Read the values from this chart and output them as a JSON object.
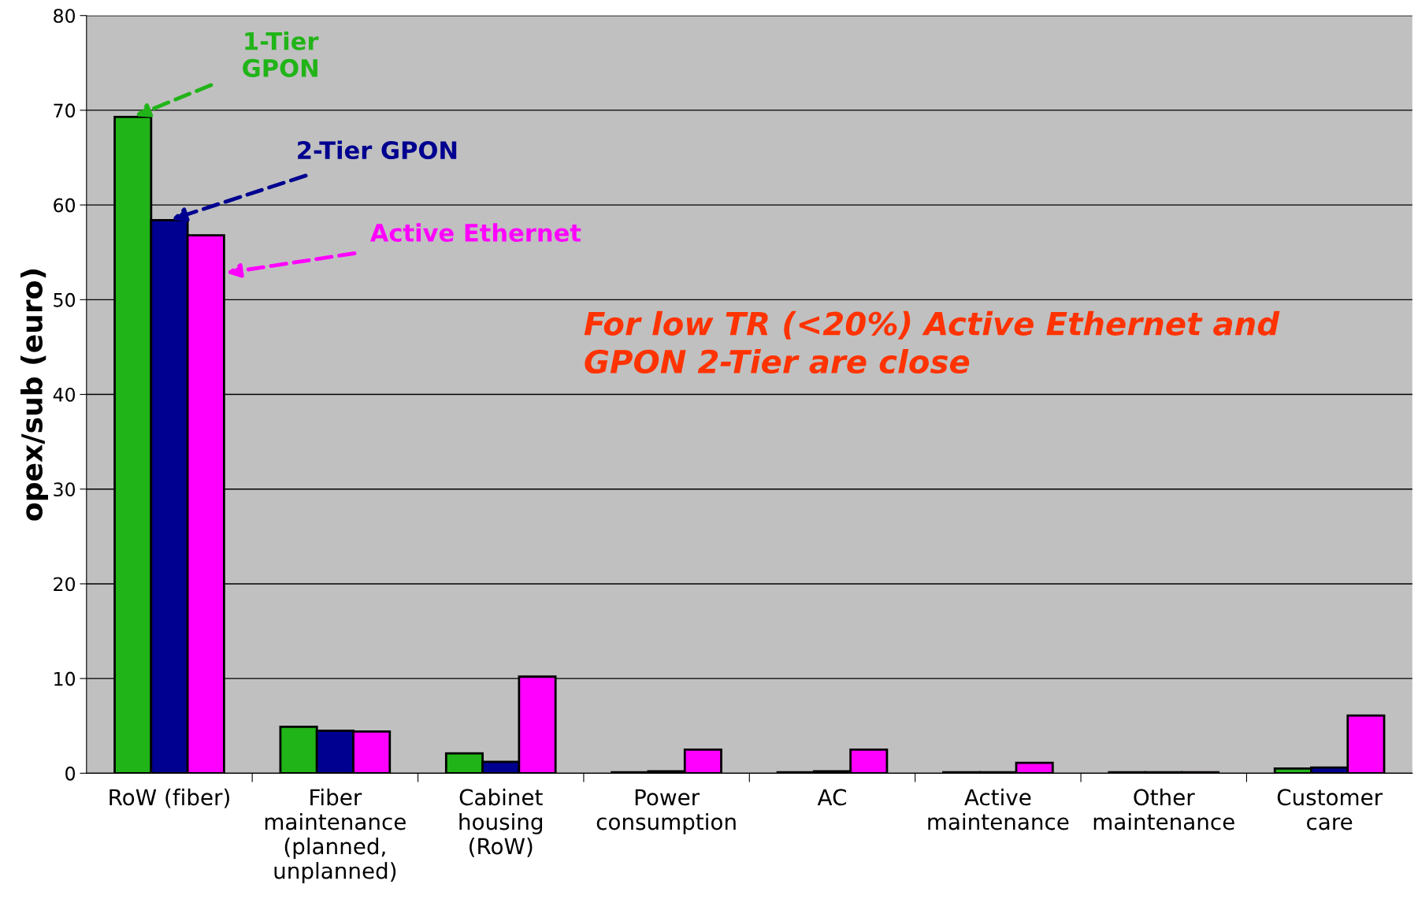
{
  "chart_data": {
    "type": "bar",
    "ylabel": "opex/sub (euro)",
    "categories": [
      "RoW (fiber)",
      "Fiber\nmaintenance\n(planned,\nunplanned)",
      "Cabinet\nhousing\n(RoW)",
      "Power\nconsumption",
      "AC",
      "Active\nmaintenance",
      "Other\nmaintenance",
      "Customer\ncare"
    ],
    "series": [
      {
        "name": "1-Tier\nGPON",
        "color": "#21b418",
        "values": [
          69.3,
          4.9,
          2.1,
          0.1,
          0.1,
          0.1,
          0.1,
          0.5
        ]
      },
      {
        "name": "2-Tier GPON",
        "color": "#000090",
        "values": [
          58.4,
          4.5,
          1.2,
          0.2,
          0.2,
          0.1,
          0.1,
          0.6
        ]
      },
      {
        "name": "Active Ethernet",
        "color": "#ff00ff",
        "values": [
          56.8,
          4.4,
          10.2,
          2.5,
          2.5,
          1.1,
          0.1,
          6.1
        ]
      }
    ],
    "ylim": [
      0,
      80
    ],
    "yticks": [
      0,
      10,
      20,
      30,
      40,
      50,
      60,
      70,
      80
    ],
    "grid": "y",
    "annotations": [
      "For low TR (<20%) Active Ethernet and\nGPON 2-Tier are close"
    ]
  }
}
